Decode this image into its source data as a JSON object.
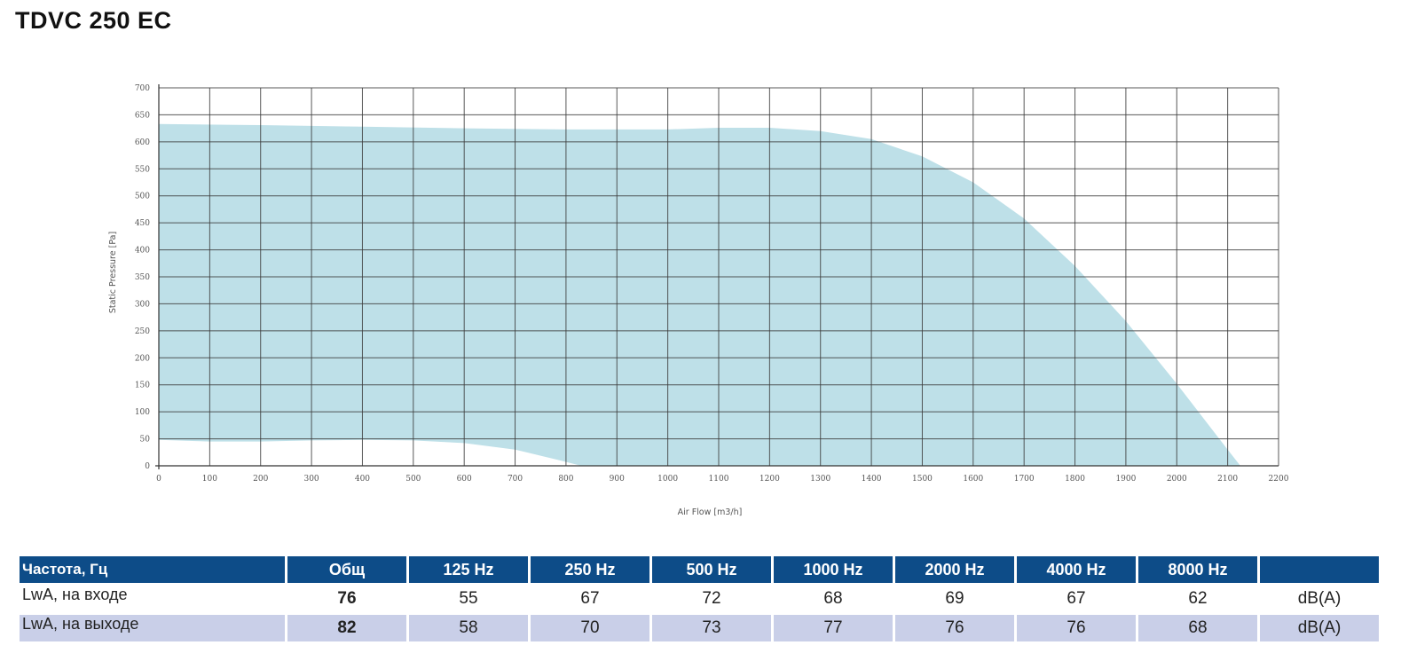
{
  "page": {
    "title": "TDVC 250 EC"
  },
  "chart_data": {
    "type": "area",
    "title": "",
    "xlabel": "Air Flow [m3/h]",
    "ylabel": "Static Pressure [Pa]",
    "xlim": [
      0,
      2200
    ],
    "ylim": [
      0,
      700
    ],
    "x_ticks": [
      0,
      100,
      200,
      300,
      400,
      500,
      600,
      700,
      800,
      900,
      1000,
      1100,
      1200,
      1300,
      1400,
      1500,
      1600,
      1700,
      1800,
      1900,
      2000,
      2100,
      2200
    ],
    "y_ticks": [
      0,
      50,
      100,
      150,
      200,
      250,
      300,
      350,
      400,
      450,
      500,
      550,
      600,
      650,
      700
    ],
    "grid": true,
    "fill_color": "#bee0e8",
    "series": [
      {
        "role": "upper_boundary",
        "x": [
          0,
          200,
          400,
          600,
          800,
          1000,
          1100,
          1200,
          1300,
          1400,
          1500,
          1600,
          1700,
          1800,
          1900,
          2000,
          2100,
          2125
        ],
        "y": [
          633,
          631,
          628,
          625,
          623,
          623,
          626,
          626,
          620,
          605,
          573,
          525,
          458,
          370,
          268,
          152,
          30,
          0
        ]
      },
      {
        "role": "lower_boundary",
        "x": [
          0,
          100,
          200,
          300,
          400,
          500,
          600,
          700,
          780,
          830
        ],
        "y": [
          48,
          45,
          45,
          47,
          48,
          47,
          42,
          30,
          12,
          0
        ]
      }
    ]
  },
  "sound_table": {
    "header": [
      "Частота, Гц",
      "Общ",
      "125 Hz",
      "250 Hz",
      "500 Hz",
      "1000 Hz",
      "2000 Hz",
      "4000 Hz",
      "8000 Hz",
      ""
    ],
    "rows": [
      [
        "LwA, на входе",
        "76",
        "55",
        "67",
        "72",
        "68",
        "69",
        "67",
        "62",
        "dB(A)"
      ],
      [
        "LwA, на выходе",
        "82",
        "58",
        "70",
        "73",
        "77",
        "76",
        "76",
        "68",
        "dB(A)"
      ]
    ]
  }
}
